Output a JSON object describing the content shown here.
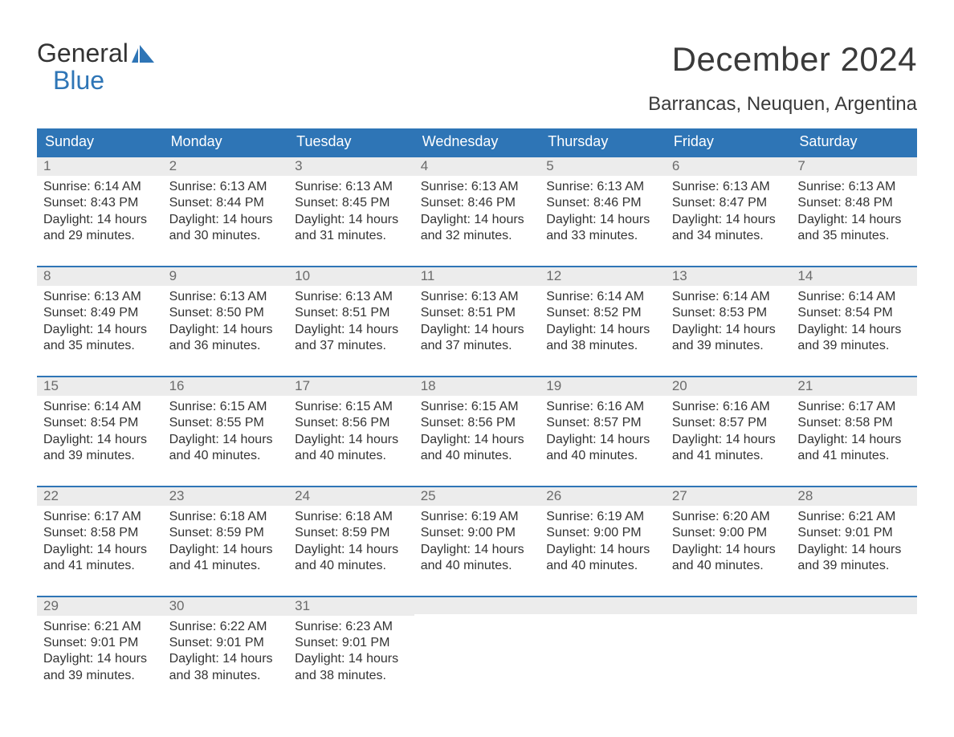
{
  "brand": {
    "word1": "General",
    "word2": "Blue"
  },
  "title": "December 2024",
  "location": "Barrancas, Neuquen, Argentina",
  "colors": {
    "header_bg": "#2e75b6",
    "header_text": "#ffffff",
    "daynum_bg": "#ececec",
    "daynum_text": "#6b6b6b",
    "cell_border": "#2e75b6",
    "body_text": "#333333",
    "logo_blue": "#2e75b6"
  },
  "layout": {
    "type": "calendar",
    "columns": 7,
    "rows": 5,
    "title_fontsize": 42,
    "location_fontsize": 24,
    "dow_fontsize": 18,
    "daynum_fontsize": 17,
    "body_fontsize": 16
  },
  "daysOfWeek": [
    "Sunday",
    "Monday",
    "Tuesday",
    "Wednesday",
    "Thursday",
    "Friday",
    "Saturday"
  ],
  "weeks": [
    [
      {
        "n": "1",
        "sunrise": "Sunrise: 6:14 AM",
        "sunset": "Sunset: 8:43 PM",
        "d1": "Daylight: 14 hours",
        "d2": "and 29 minutes."
      },
      {
        "n": "2",
        "sunrise": "Sunrise: 6:13 AM",
        "sunset": "Sunset: 8:44 PM",
        "d1": "Daylight: 14 hours",
        "d2": "and 30 minutes."
      },
      {
        "n": "3",
        "sunrise": "Sunrise: 6:13 AM",
        "sunset": "Sunset: 8:45 PM",
        "d1": "Daylight: 14 hours",
        "d2": "and 31 minutes."
      },
      {
        "n": "4",
        "sunrise": "Sunrise: 6:13 AM",
        "sunset": "Sunset: 8:46 PM",
        "d1": "Daylight: 14 hours",
        "d2": "and 32 minutes."
      },
      {
        "n": "5",
        "sunrise": "Sunrise: 6:13 AM",
        "sunset": "Sunset: 8:46 PM",
        "d1": "Daylight: 14 hours",
        "d2": "and 33 minutes."
      },
      {
        "n": "6",
        "sunrise": "Sunrise: 6:13 AM",
        "sunset": "Sunset: 8:47 PM",
        "d1": "Daylight: 14 hours",
        "d2": "and 34 minutes."
      },
      {
        "n": "7",
        "sunrise": "Sunrise: 6:13 AM",
        "sunset": "Sunset: 8:48 PM",
        "d1": "Daylight: 14 hours",
        "d2": "and 35 minutes."
      }
    ],
    [
      {
        "n": "8",
        "sunrise": "Sunrise: 6:13 AM",
        "sunset": "Sunset: 8:49 PM",
        "d1": "Daylight: 14 hours",
        "d2": "and 35 minutes."
      },
      {
        "n": "9",
        "sunrise": "Sunrise: 6:13 AM",
        "sunset": "Sunset: 8:50 PM",
        "d1": "Daylight: 14 hours",
        "d2": "and 36 minutes."
      },
      {
        "n": "10",
        "sunrise": "Sunrise: 6:13 AM",
        "sunset": "Sunset: 8:51 PM",
        "d1": "Daylight: 14 hours",
        "d2": "and 37 minutes."
      },
      {
        "n": "11",
        "sunrise": "Sunrise: 6:13 AM",
        "sunset": "Sunset: 8:51 PM",
        "d1": "Daylight: 14 hours",
        "d2": "and 37 minutes."
      },
      {
        "n": "12",
        "sunrise": "Sunrise: 6:14 AM",
        "sunset": "Sunset: 8:52 PM",
        "d1": "Daylight: 14 hours",
        "d2": "and 38 minutes."
      },
      {
        "n": "13",
        "sunrise": "Sunrise: 6:14 AM",
        "sunset": "Sunset: 8:53 PM",
        "d1": "Daylight: 14 hours",
        "d2": "and 39 minutes."
      },
      {
        "n": "14",
        "sunrise": "Sunrise: 6:14 AM",
        "sunset": "Sunset: 8:54 PM",
        "d1": "Daylight: 14 hours",
        "d2": "and 39 minutes."
      }
    ],
    [
      {
        "n": "15",
        "sunrise": "Sunrise: 6:14 AM",
        "sunset": "Sunset: 8:54 PM",
        "d1": "Daylight: 14 hours",
        "d2": "and 39 minutes."
      },
      {
        "n": "16",
        "sunrise": "Sunrise: 6:15 AM",
        "sunset": "Sunset: 8:55 PM",
        "d1": "Daylight: 14 hours",
        "d2": "and 40 minutes."
      },
      {
        "n": "17",
        "sunrise": "Sunrise: 6:15 AM",
        "sunset": "Sunset: 8:56 PM",
        "d1": "Daylight: 14 hours",
        "d2": "and 40 minutes."
      },
      {
        "n": "18",
        "sunrise": "Sunrise: 6:15 AM",
        "sunset": "Sunset: 8:56 PM",
        "d1": "Daylight: 14 hours",
        "d2": "and 40 minutes."
      },
      {
        "n": "19",
        "sunrise": "Sunrise: 6:16 AM",
        "sunset": "Sunset: 8:57 PM",
        "d1": "Daylight: 14 hours",
        "d2": "and 40 minutes."
      },
      {
        "n": "20",
        "sunrise": "Sunrise: 6:16 AM",
        "sunset": "Sunset: 8:57 PM",
        "d1": "Daylight: 14 hours",
        "d2": "and 41 minutes."
      },
      {
        "n": "21",
        "sunrise": "Sunrise: 6:17 AM",
        "sunset": "Sunset: 8:58 PM",
        "d1": "Daylight: 14 hours",
        "d2": "and 41 minutes."
      }
    ],
    [
      {
        "n": "22",
        "sunrise": "Sunrise: 6:17 AM",
        "sunset": "Sunset: 8:58 PM",
        "d1": "Daylight: 14 hours",
        "d2": "and 41 minutes."
      },
      {
        "n": "23",
        "sunrise": "Sunrise: 6:18 AM",
        "sunset": "Sunset: 8:59 PM",
        "d1": "Daylight: 14 hours",
        "d2": "and 41 minutes."
      },
      {
        "n": "24",
        "sunrise": "Sunrise: 6:18 AM",
        "sunset": "Sunset: 8:59 PM",
        "d1": "Daylight: 14 hours",
        "d2": "and 40 minutes."
      },
      {
        "n": "25",
        "sunrise": "Sunrise: 6:19 AM",
        "sunset": "Sunset: 9:00 PM",
        "d1": "Daylight: 14 hours",
        "d2": "and 40 minutes."
      },
      {
        "n": "26",
        "sunrise": "Sunrise: 6:19 AM",
        "sunset": "Sunset: 9:00 PM",
        "d1": "Daylight: 14 hours",
        "d2": "and 40 minutes."
      },
      {
        "n": "27",
        "sunrise": "Sunrise: 6:20 AM",
        "sunset": "Sunset: 9:00 PM",
        "d1": "Daylight: 14 hours",
        "d2": "and 40 minutes."
      },
      {
        "n": "28",
        "sunrise": "Sunrise: 6:21 AM",
        "sunset": "Sunset: 9:01 PM",
        "d1": "Daylight: 14 hours",
        "d2": "and 39 minutes."
      }
    ],
    [
      {
        "n": "29",
        "sunrise": "Sunrise: 6:21 AM",
        "sunset": "Sunset: 9:01 PM",
        "d1": "Daylight: 14 hours",
        "d2": "and 39 minutes."
      },
      {
        "n": "30",
        "sunrise": "Sunrise: 6:22 AM",
        "sunset": "Sunset: 9:01 PM",
        "d1": "Daylight: 14 hours",
        "d2": "and 38 minutes."
      },
      {
        "n": "31",
        "sunrise": "Sunrise: 6:23 AM",
        "sunset": "Sunset: 9:01 PM",
        "d1": "Daylight: 14 hours",
        "d2": "and 38 minutes."
      },
      null,
      null,
      null,
      null
    ]
  ]
}
